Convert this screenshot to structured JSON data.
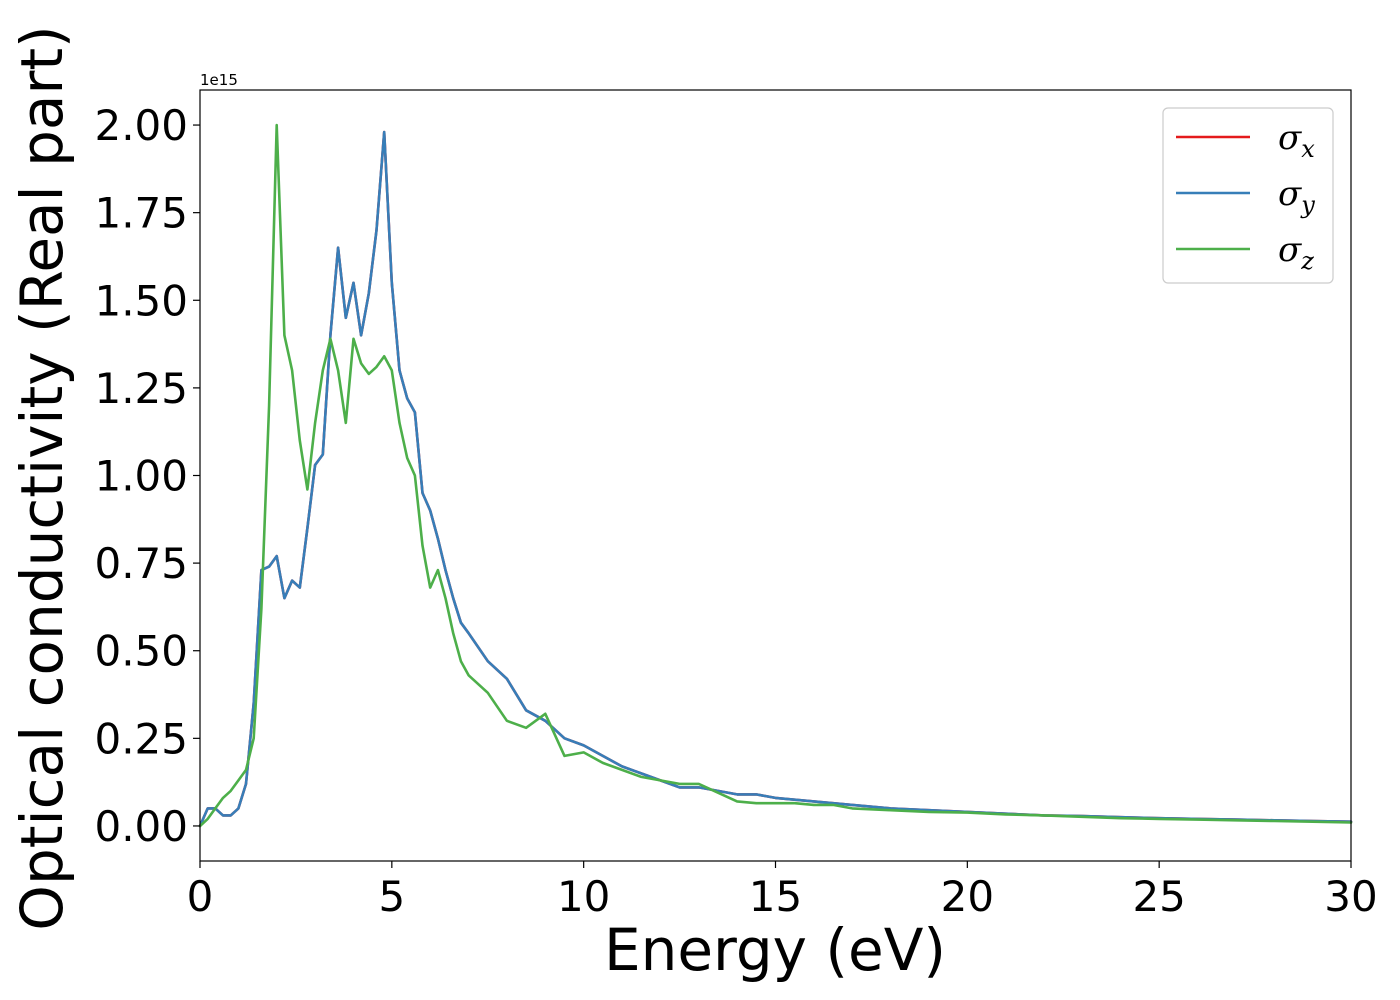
{
  "chart_data": {
    "type": "line",
    "xlabel": "Energy (eV)",
    "ylabel": "Optical conductivity (Real part)",
    "y_offset_label": "1e15",
    "xlim": [
      0,
      30
    ],
    "ylim": [
      -0.1,
      2.1
    ],
    "x_ticks": [
      "0",
      "5",
      "10",
      "15",
      "20",
      "25",
      "30"
    ],
    "x_tick_values": [
      0,
      5,
      10,
      15,
      20,
      25,
      30
    ],
    "y_ticks": [
      "0.00",
      "0.25",
      "0.50",
      "0.75",
      "1.00",
      "1.25",
      "1.50",
      "1.75",
      "2.00"
    ],
    "y_tick_values": [
      0,
      0.25,
      0.5,
      0.75,
      1.0,
      1.25,
      1.5,
      1.75,
      2.0
    ],
    "grid": false,
    "legend_position": "top-right",
    "colors": {
      "x": "#e41a1c",
      "y": "#377eb8",
      "z": "#4daf4a"
    },
    "series": [
      {
        "name": "σx",
        "symbol": "σ",
        "subscript": "x",
        "color": "#e41a1c",
        "x": [
          0,
          0.2,
          0.4,
          0.6,
          0.8,
          1.0,
          1.2,
          1.4,
          1.6,
          1.8,
          2.0,
          2.2,
          2.4,
          2.6,
          2.8,
          3.0,
          3.2,
          3.4,
          3.6,
          3.8,
          4.0,
          4.2,
          4.4,
          4.6,
          4.8,
          5.0,
          5.2,
          5.4,
          5.6,
          5.8,
          6.0,
          6.2,
          6.4,
          6.6,
          6.8,
          7.0,
          7.5,
          8.0,
          8.5,
          9.0,
          9.5,
          10.0,
          10.5,
          11.0,
          11.5,
          12.0,
          12.5,
          13.0,
          14.0,
          14.5,
          15.0,
          15.5,
          16.0,
          16.5,
          17.0,
          18.0,
          19.0,
          20.0,
          21.0,
          22.0,
          23.0,
          24.0,
          25.0,
          26.0,
          27.0,
          28.0,
          29.0,
          30.0
        ],
        "values": [
          0.0,
          0.05,
          0.05,
          0.03,
          0.03,
          0.05,
          0.12,
          0.35,
          0.73,
          0.74,
          0.77,
          0.65,
          0.7,
          0.68,
          0.85,
          1.03,
          1.06,
          1.4,
          1.65,
          1.45,
          1.55,
          1.4,
          1.52,
          1.7,
          1.98,
          1.55,
          1.3,
          1.22,
          1.18,
          0.95,
          0.9,
          0.82,
          0.73,
          0.65,
          0.58,
          0.55,
          0.47,
          0.42,
          0.33,
          0.3,
          0.25,
          0.23,
          0.2,
          0.17,
          0.15,
          0.13,
          0.11,
          0.11,
          0.09,
          0.09,
          0.08,
          0.075,
          0.07,
          0.065,
          0.06,
          0.05,
          0.045,
          0.04,
          0.035,
          0.03,
          0.028,
          0.025,
          0.022,
          0.02,
          0.018,
          0.016,
          0.014,
          0.012
        ]
      },
      {
        "name": "σy",
        "symbol": "σ",
        "subscript": "y",
        "color": "#377eb8",
        "x": [
          0,
          0.2,
          0.4,
          0.6,
          0.8,
          1.0,
          1.2,
          1.4,
          1.6,
          1.8,
          2.0,
          2.2,
          2.4,
          2.6,
          2.8,
          3.0,
          3.2,
          3.4,
          3.6,
          3.8,
          4.0,
          4.2,
          4.4,
          4.6,
          4.8,
          5.0,
          5.2,
          5.4,
          5.6,
          5.8,
          6.0,
          6.2,
          6.4,
          6.6,
          6.8,
          7.0,
          7.5,
          8.0,
          8.5,
          9.0,
          9.5,
          10.0,
          10.5,
          11.0,
          11.5,
          12.0,
          12.5,
          13.0,
          14.0,
          14.5,
          15.0,
          15.5,
          16.0,
          16.5,
          17.0,
          18.0,
          19.0,
          20.0,
          21.0,
          22.0,
          23.0,
          24.0,
          25.0,
          26.0,
          27.0,
          28.0,
          29.0,
          30.0
        ],
        "values": [
          0.0,
          0.05,
          0.05,
          0.03,
          0.03,
          0.05,
          0.12,
          0.35,
          0.73,
          0.74,
          0.77,
          0.65,
          0.7,
          0.68,
          0.85,
          1.03,
          1.06,
          1.4,
          1.65,
          1.45,
          1.55,
          1.4,
          1.52,
          1.7,
          1.98,
          1.55,
          1.3,
          1.22,
          1.18,
          0.95,
          0.9,
          0.82,
          0.73,
          0.65,
          0.58,
          0.55,
          0.47,
          0.42,
          0.33,
          0.3,
          0.25,
          0.23,
          0.2,
          0.17,
          0.15,
          0.13,
          0.11,
          0.11,
          0.09,
          0.09,
          0.08,
          0.075,
          0.07,
          0.065,
          0.06,
          0.05,
          0.045,
          0.04,
          0.035,
          0.03,
          0.028,
          0.025,
          0.022,
          0.02,
          0.018,
          0.016,
          0.014,
          0.012
        ]
      },
      {
        "name": "σz",
        "symbol": "σ",
        "subscript": "z",
        "color": "#4daf4a",
        "x": [
          0,
          0.2,
          0.4,
          0.6,
          0.8,
          1.0,
          1.2,
          1.4,
          1.6,
          1.8,
          2.0,
          2.2,
          2.4,
          2.6,
          2.8,
          3.0,
          3.2,
          3.4,
          3.6,
          3.8,
          4.0,
          4.2,
          4.4,
          4.6,
          4.8,
          5.0,
          5.2,
          5.4,
          5.6,
          5.8,
          6.0,
          6.2,
          6.4,
          6.6,
          6.8,
          7.0,
          7.5,
          8.0,
          8.5,
          9.0,
          9.5,
          10.0,
          10.5,
          11.0,
          11.5,
          12.0,
          12.5,
          13.0,
          14.0,
          14.5,
          15.0,
          15.5,
          16.0,
          16.5,
          17.0,
          18.0,
          19.0,
          20.0,
          21.0,
          22.0,
          23.0,
          24.0,
          25.0,
          26.0,
          27.0,
          28.0,
          29.0,
          30.0
        ],
        "values": [
          0.0,
          0.02,
          0.05,
          0.08,
          0.1,
          0.13,
          0.16,
          0.25,
          0.62,
          1.2,
          2.0,
          1.4,
          1.3,
          1.1,
          0.96,
          1.15,
          1.3,
          1.39,
          1.3,
          1.15,
          1.39,
          1.32,
          1.29,
          1.31,
          1.34,
          1.3,
          1.15,
          1.05,
          1.0,
          0.8,
          0.68,
          0.73,
          0.65,
          0.55,
          0.47,
          0.43,
          0.38,
          0.3,
          0.28,
          0.32,
          0.2,
          0.21,
          0.18,
          0.16,
          0.14,
          0.13,
          0.12,
          0.12,
          0.07,
          0.065,
          0.065,
          0.065,
          0.06,
          0.06,
          0.05,
          0.045,
          0.04,
          0.038,
          0.033,
          0.03,
          0.026,
          0.022,
          0.02,
          0.018,
          0.016,
          0.014,
          0.012,
          0.01
        ]
      }
    ]
  }
}
